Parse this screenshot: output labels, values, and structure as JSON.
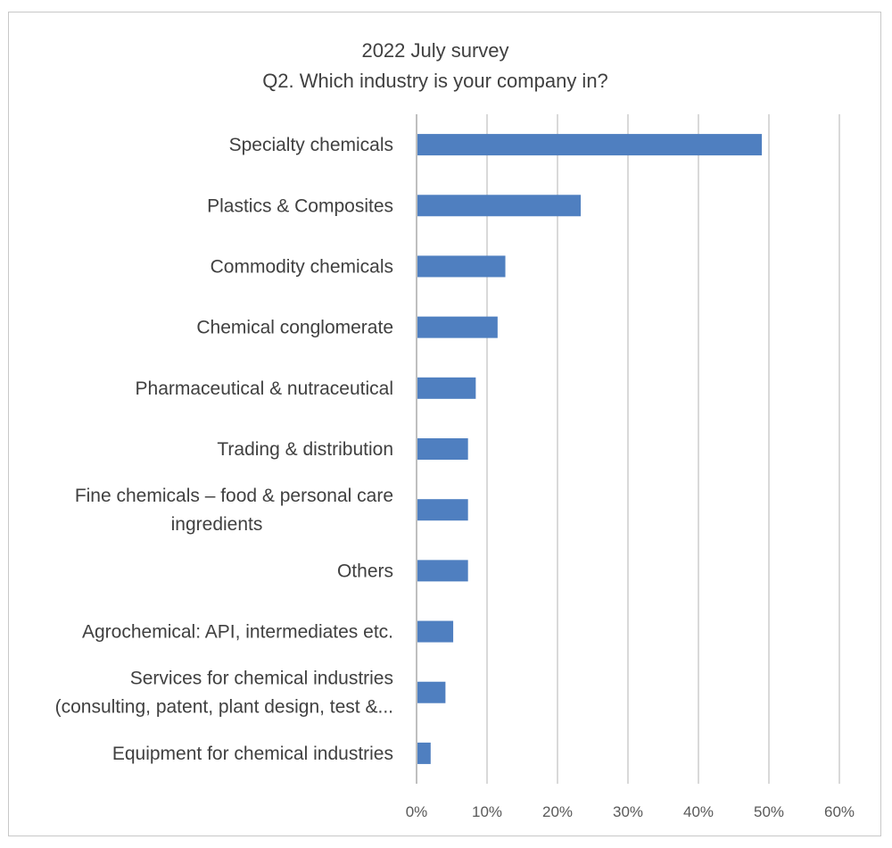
{
  "chart_data": {
    "type": "bar",
    "orientation": "horizontal",
    "title": "2022 July survey",
    "subtitle": "Q2. Which industry is your company in?",
    "categories": [
      [
        "Specialty chemicals"
      ],
      [
        "Plastics & Composites"
      ],
      [
        "Commodity chemicals"
      ],
      [
        "Chemical conglomerate"
      ],
      [
        "Pharmaceutical & nutraceutical"
      ],
      [
        "Trading & distribution"
      ],
      [
        "Fine chemicals – food & personal care",
        "ingredients"
      ],
      [
        "Others"
      ],
      [
        "Agrochemical: API, intermediates etc."
      ],
      [
        "Services for chemical industries",
        "(consulting, patent, plant design, test &..."
      ],
      [
        "Equipment for chemical industries"
      ]
    ],
    "values": [
      49,
      23.3,
      12.6,
      11.5,
      8.4,
      7.3,
      7.3,
      7.3,
      5.2,
      4.1,
      2.0
    ],
    "value_unit": "%",
    "xlim": [
      0,
      60
    ],
    "x_ticks": [
      0,
      10,
      20,
      30,
      40,
      50,
      60
    ],
    "x_tick_labels": [
      "0%",
      "10%",
      "20%",
      "30%",
      "40%",
      "50%",
      "60%"
    ],
    "xlabel": "",
    "ylabel": "",
    "grid": "vertical",
    "legend": "none",
    "bar_color": "#4f7fc0",
    "grid_color": "#d9d9d9"
  }
}
